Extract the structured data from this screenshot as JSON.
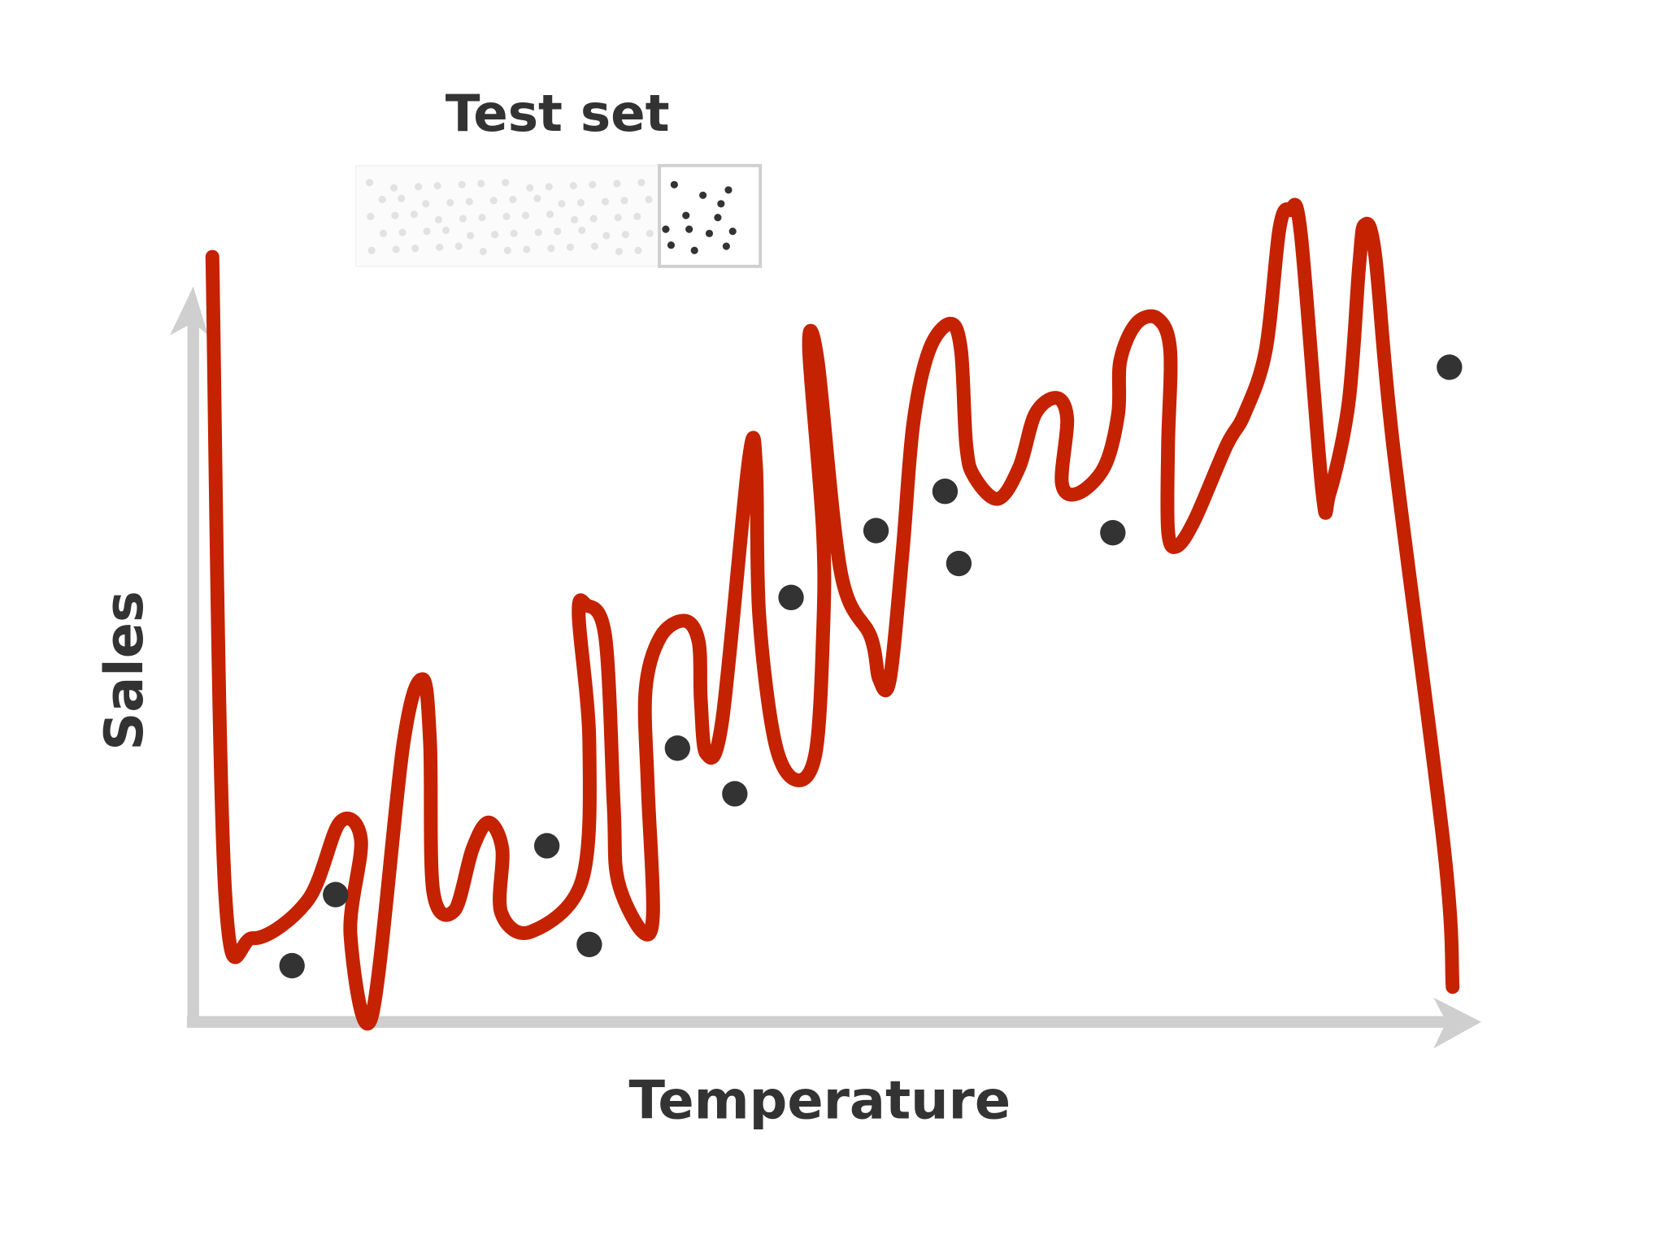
{
  "title": "Test set",
  "y_axis": {
    "label": "Sales"
  },
  "x_axis": {
    "label": "Temperature"
  }
}
